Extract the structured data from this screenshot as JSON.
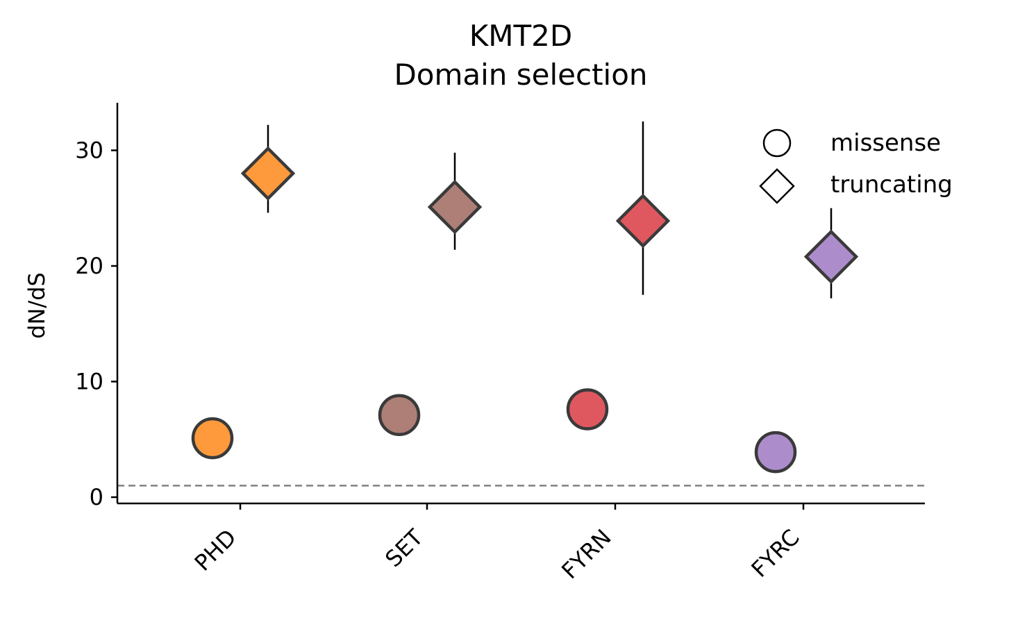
{
  "chart_data": {
    "type": "scatter",
    "title_line1": "KMT2D",
    "title_line2": "Domain selection",
    "xlabel": "",
    "ylabel": "dN/dS",
    "categories": [
      "PHD",
      "SET",
      "FYRN",
      "FYRC"
    ],
    "yticks": [
      "0",
      "10",
      "20",
      "30"
    ],
    "ylim": [
      -0.5,
      34
    ],
    "reference_line": 1,
    "category_colors": [
      "#ff9a3c",
      "#ad7f76",
      "#e0585f",
      "#ad8ccc"
    ],
    "series": [
      {
        "name": "missense",
        "marker": "circle",
        "values": [
          5.1,
          7.1,
          7.6,
          3.9
        ]
      },
      {
        "name": "truncating",
        "marker": "diamond",
        "values": [
          28.0,
          25.1,
          23.9,
          20.8
        ],
        "err_low": [
          24.6,
          21.4,
          17.5,
          17.2
        ],
        "err_high": [
          32.2,
          29.8,
          32.5,
          25.0
        ]
      }
    ],
    "legend": {
      "position": "top-right",
      "missense": "missense",
      "truncating": "truncating"
    },
    "grid": false
  }
}
